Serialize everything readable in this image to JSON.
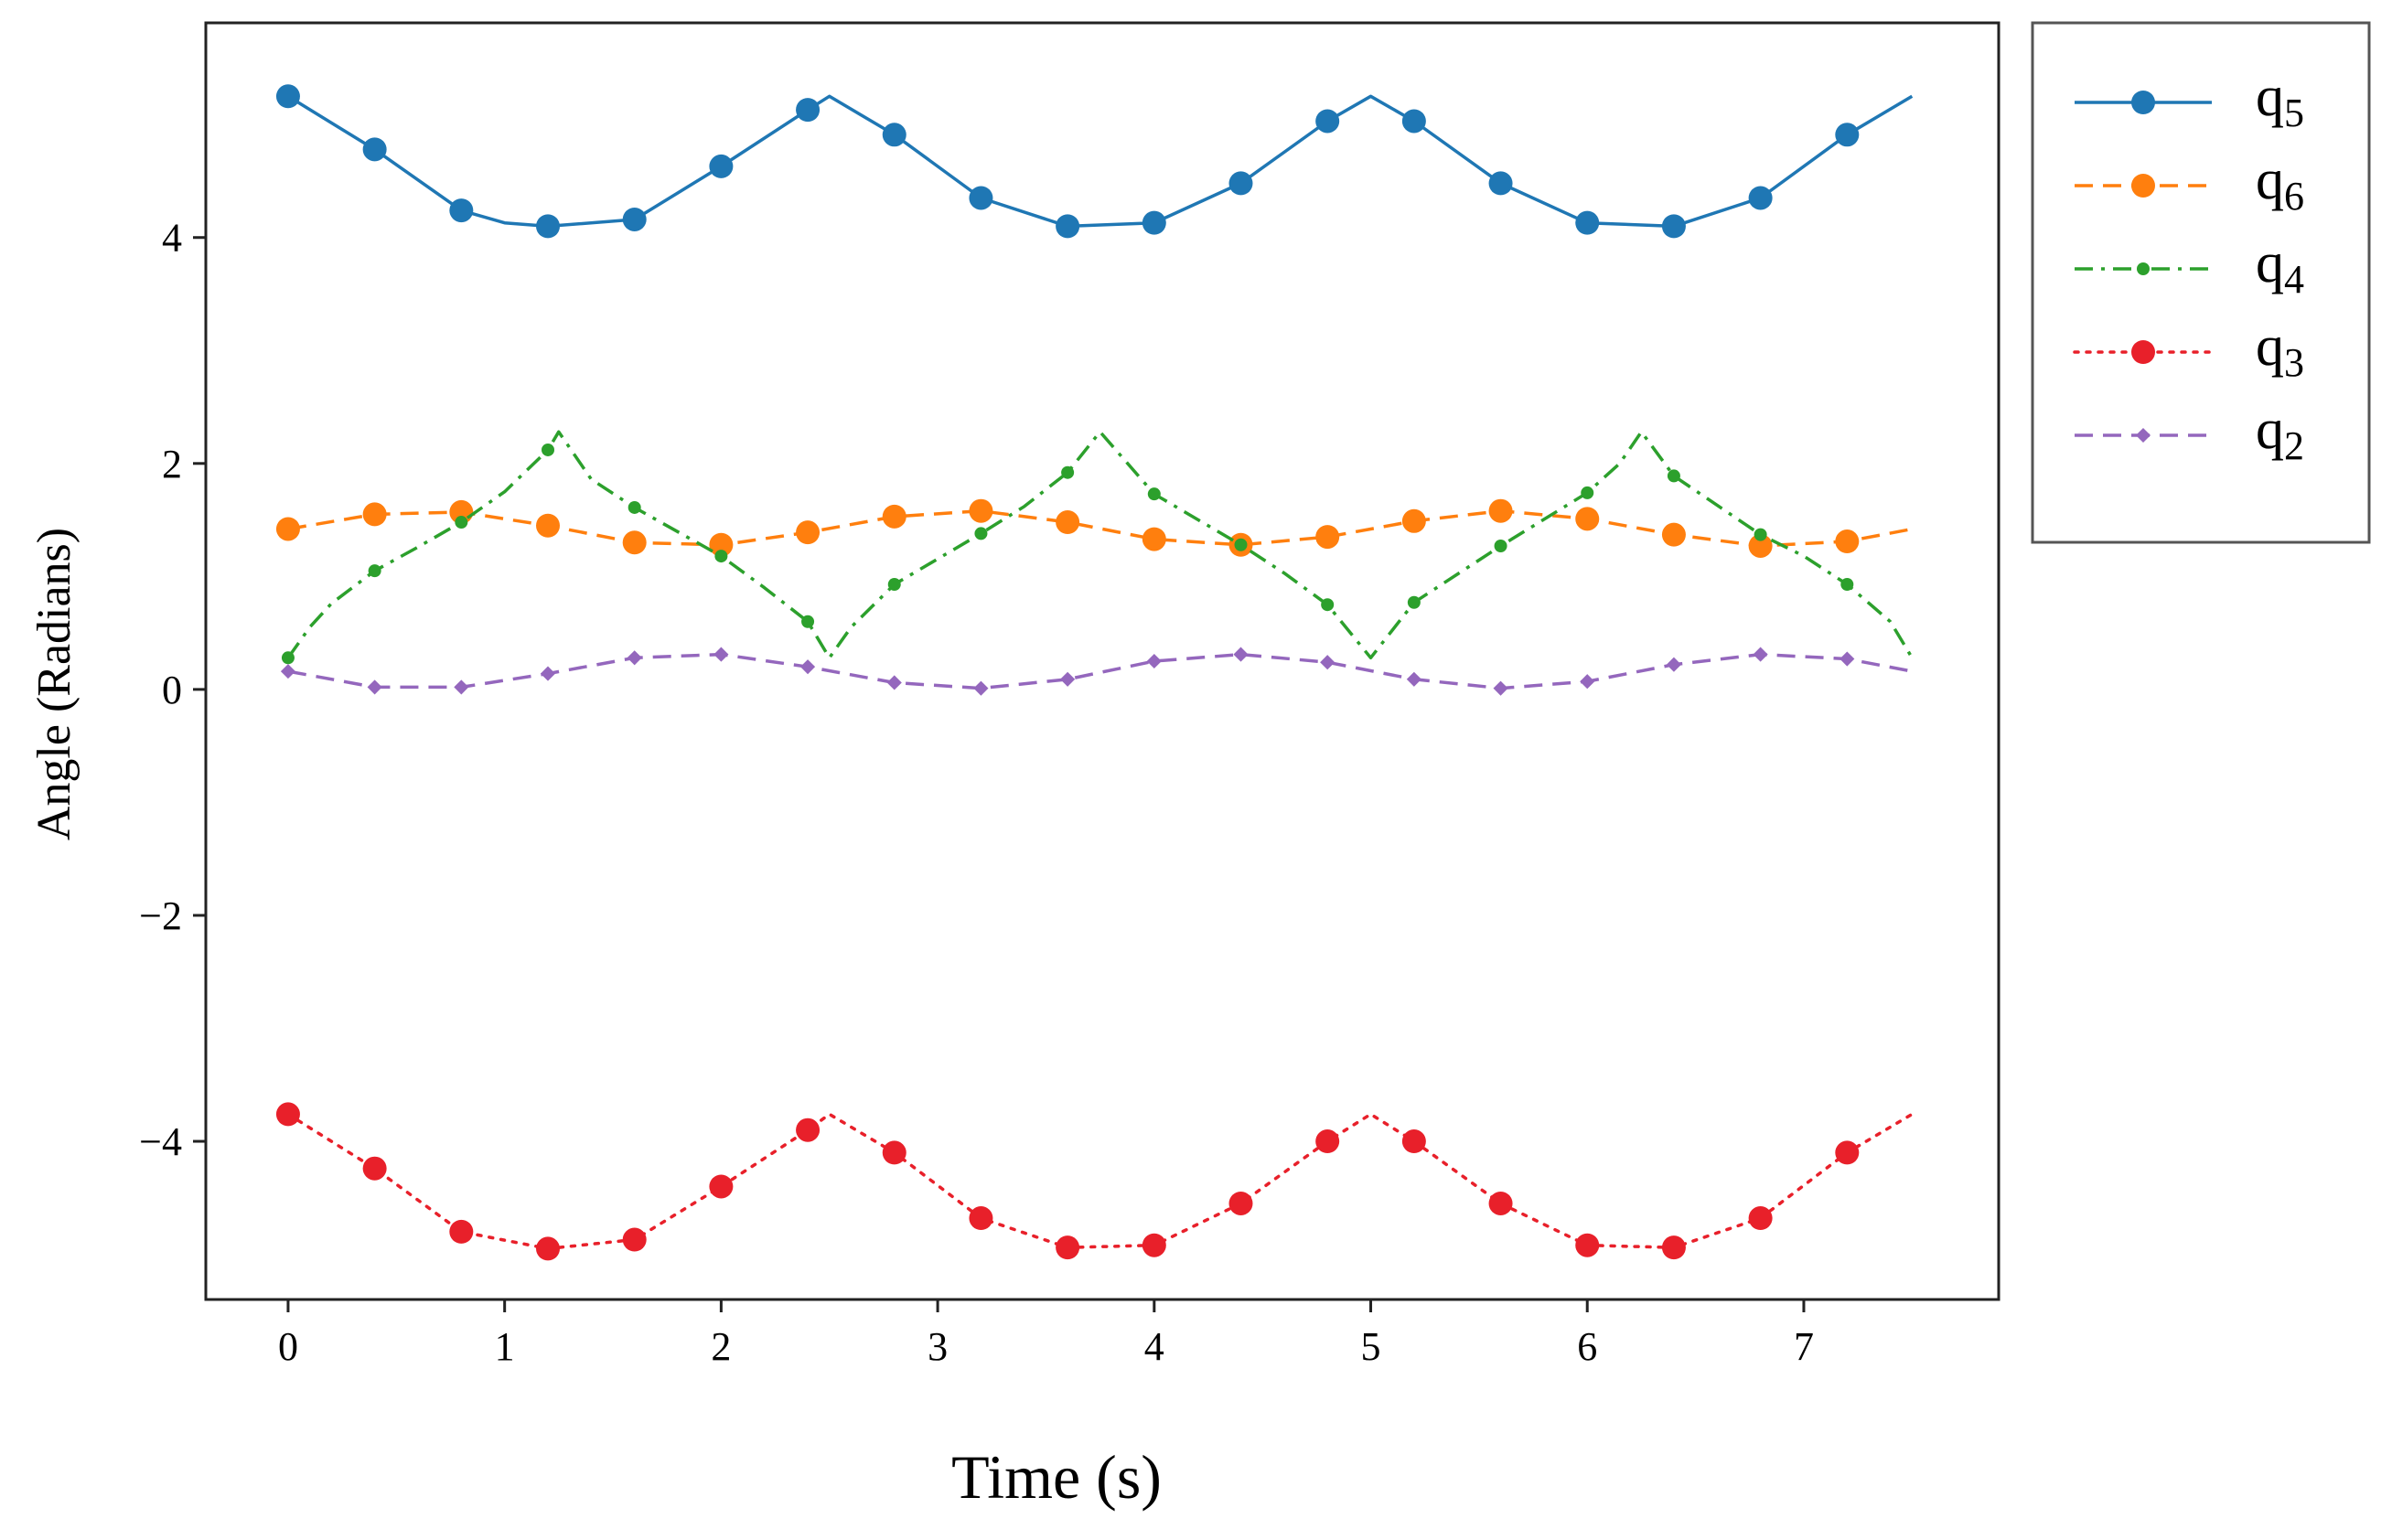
{
  "chart_data": {
    "type": "line",
    "title": "",
    "xlabel": "Time (s)",
    "ylabel": "Angle (Radians)",
    "xlim": [
      -0.38,
      7.9
    ],
    "ylim": [
      -5.4,
      5.9
    ],
    "xticks": [
      {
        "value": 0,
        "label": "0"
      },
      {
        "value": 1,
        "label": "1"
      },
      {
        "value": 2,
        "label": "2"
      },
      {
        "value": 3,
        "label": "3"
      },
      {
        "value": 4,
        "label": "4"
      },
      {
        "value": 5,
        "label": "5"
      },
      {
        "value": 6,
        "label": "6"
      },
      {
        "value": 7,
        "label": "7"
      }
    ],
    "yticks": [
      {
        "value": -4,
        "label": "−4"
      },
      {
        "value": -2,
        "label": "−2"
      },
      {
        "value": 0,
        "label": "0"
      },
      {
        "value": 2,
        "label": "2"
      },
      {
        "value": 4,
        "label": "4"
      }
    ],
    "grid": false,
    "legend_position": "outside-top-right",
    "x": [
      0,
      0.4,
      0.8,
      1.2,
      1.6,
      2.0,
      2.4,
      2.8,
      3.2,
      3.6,
      4.0,
      4.4,
      4.8,
      5.2,
      5.6,
      6.0,
      6.4,
      6.8,
      7.2
    ],
    "series": [
      {
        "name": "q5",
        "label_base": "q",
        "label_sub": "5",
        "color": "#1f77b4",
        "dash": "solid",
        "marker": "circle",
        "marker_size": "large",
        "line": [
          [
            0,
            5.25
          ],
          [
            0.4,
            4.78
          ],
          [
            0.8,
            4.24
          ],
          [
            1.0,
            4.13
          ],
          [
            1.2,
            4.1
          ],
          [
            1.6,
            4.16
          ],
          [
            2.0,
            4.63
          ],
          [
            2.4,
            5.13
          ],
          [
            2.5,
            5.25
          ],
          [
            2.8,
            4.91
          ],
          [
            3.2,
            4.35
          ],
          [
            3.6,
            4.1
          ],
          [
            4.0,
            4.13
          ],
          [
            4.4,
            4.48
          ],
          [
            4.8,
            5.03
          ],
          [
            5.0,
            5.25
          ],
          [
            5.2,
            5.03
          ],
          [
            5.6,
            4.48
          ],
          [
            6.0,
            4.13
          ],
          [
            6.4,
            4.1
          ],
          [
            6.8,
            4.35
          ],
          [
            7.2,
            4.91
          ],
          [
            7.5,
            5.25
          ]
        ],
        "values": [
          5.25,
          4.78,
          4.24,
          4.1,
          4.16,
          4.63,
          5.13,
          4.91,
          4.35,
          4.1,
          4.13,
          4.48,
          5.03,
          5.03,
          4.48,
          4.13,
          4.1,
          4.35,
          4.91
        ]
      },
      {
        "name": "q6",
        "label_base": "q",
        "label_sub": "6",
        "color": "#ff7f0e",
        "dash": "dashed",
        "marker": "circle",
        "marker_size": "large",
        "line": [
          [
            0,
            1.42
          ],
          [
            0.4,
            1.55
          ],
          [
            0.8,
            1.57
          ],
          [
            1.2,
            1.45
          ],
          [
            1.6,
            1.3
          ],
          [
            2.0,
            1.28
          ],
          [
            2.4,
            1.39
          ],
          [
            2.8,
            1.53
          ],
          [
            3.2,
            1.58
          ],
          [
            3.6,
            1.48
          ],
          [
            4.0,
            1.33
          ],
          [
            4.4,
            1.28
          ],
          [
            4.8,
            1.35
          ],
          [
            5.2,
            1.49
          ],
          [
            5.6,
            1.58
          ],
          [
            6.0,
            1.51
          ],
          [
            6.4,
            1.37
          ],
          [
            6.8,
            1.27
          ],
          [
            7.2,
            1.31
          ],
          [
            7.5,
            1.42
          ]
        ],
        "values": [
          1.42,
          1.55,
          1.57,
          1.45,
          1.3,
          1.28,
          1.39,
          1.53,
          1.58,
          1.48,
          1.33,
          1.28,
          1.35,
          1.49,
          1.58,
          1.51,
          1.37,
          1.27,
          1.31
        ]
      },
      {
        "name": "q4",
        "label_base": "q",
        "label_sub": "4",
        "color": "#2ca02c",
        "dash": "dashdot",
        "marker": "circle",
        "marker_size": "small",
        "line": [
          [
            0,
            0.28
          ],
          [
            0.1,
            0.55
          ],
          [
            0.2,
            0.76
          ],
          [
            0.4,
            1.05
          ],
          [
            0.6,
            1.26
          ],
          [
            0.8,
            1.48
          ],
          [
            1.0,
            1.75
          ],
          [
            1.2,
            2.12
          ],
          [
            1.25,
            2.28
          ],
          [
            1.4,
            1.86
          ],
          [
            1.6,
            1.61
          ],
          [
            2.0,
            1.18
          ],
          [
            2.2,
            0.9
          ],
          [
            2.4,
            0.6
          ],
          [
            2.5,
            0.28
          ],
          [
            2.6,
            0.55
          ],
          [
            2.8,
            0.93
          ],
          [
            3.2,
            1.38
          ],
          [
            3.4,
            1.62
          ],
          [
            3.6,
            1.92
          ],
          [
            3.75,
            2.28
          ],
          [
            4.0,
            1.73
          ],
          [
            4.4,
            1.28
          ],
          [
            4.6,
            1.03
          ],
          [
            4.8,
            0.75
          ],
          [
            5.0,
            0.28
          ],
          [
            5.2,
            0.77
          ],
          [
            5.6,
            1.27
          ],
          [
            6.0,
            1.74
          ],
          [
            6.15,
            2.0
          ],
          [
            6.25,
            2.28
          ],
          [
            6.4,
            1.89
          ],
          [
            6.8,
            1.37
          ],
          [
            7.0,
            1.18
          ],
          [
            7.2,
            0.93
          ],
          [
            7.4,
            0.6
          ],
          [
            7.5,
            0.28
          ]
        ],
        "values": [
          0.28,
          1.05,
          1.48,
          2.12,
          1.61,
          1.18,
          0.6,
          0.93,
          1.38,
          1.92,
          1.73,
          1.28,
          0.75,
          0.77,
          1.27,
          1.74,
          1.89,
          1.37,
          0.93
        ]
      },
      {
        "name": "q3",
        "label_base": "q",
        "label_sub": "3",
        "color": "#e8202a",
        "dash": "dotted",
        "marker": "circle",
        "marker_size": "large",
        "line": [
          [
            0,
            -3.76
          ],
          [
            0.4,
            -4.24
          ],
          [
            0.8,
            -4.8
          ],
          [
            1.2,
            -4.95
          ],
          [
            1.6,
            -4.87
          ],
          [
            2.0,
            -4.4
          ],
          [
            2.4,
            -3.9
          ],
          [
            2.5,
            -3.76
          ],
          [
            2.8,
            -4.1
          ],
          [
            3.2,
            -4.68
          ],
          [
            3.6,
            -4.94
          ],
          [
            4.0,
            -4.92
          ],
          [
            4.4,
            -4.55
          ],
          [
            4.8,
            -4.0
          ],
          [
            5.0,
            -3.76
          ],
          [
            5.2,
            -4.0
          ],
          [
            5.6,
            -4.55
          ],
          [
            6.0,
            -4.92
          ],
          [
            6.4,
            -4.94
          ],
          [
            6.8,
            -4.68
          ],
          [
            7.2,
            -4.1
          ],
          [
            7.5,
            -3.76
          ]
        ],
        "values": [
          -3.76,
          -4.24,
          -4.8,
          -4.95,
          -4.87,
          -4.4,
          -3.9,
          -4.1,
          -4.68,
          -4.94,
          -4.92,
          -4.55,
          -4.0,
          -4.0,
          -4.55,
          -4.92,
          -4.94,
          -4.68,
          -4.1
        ]
      },
      {
        "name": "q2",
        "label_base": "q",
        "label_sub": "2",
        "color": "#9467bd",
        "dash": "dashed",
        "marker": "diamond",
        "marker_size": "small",
        "line": [
          [
            0,
            0.16
          ],
          [
            0.4,
            0.02
          ],
          [
            0.8,
            0.02
          ],
          [
            1.2,
            0.14
          ],
          [
            1.6,
            0.28
          ],
          [
            2.0,
            0.31
          ],
          [
            2.4,
            0.2
          ],
          [
            2.8,
            0.06
          ],
          [
            3.2,
            0.01
          ],
          [
            3.6,
            0.09
          ],
          [
            4.0,
            0.25
          ],
          [
            4.4,
            0.31
          ],
          [
            4.8,
            0.24
          ],
          [
            5.2,
            0.09
          ],
          [
            5.6,
            0.01
          ],
          [
            6.0,
            0.07
          ],
          [
            6.4,
            0.22
          ],
          [
            6.8,
            0.31
          ],
          [
            7.2,
            0.27
          ],
          [
            7.5,
            0.16
          ]
        ],
        "values": [
          0.16,
          0.02,
          0.02,
          0.14,
          0.28,
          0.31,
          0.2,
          0.06,
          0.01,
          0.09,
          0.25,
          0.31,
          0.24,
          0.09,
          0.01,
          0.07,
          0.22,
          0.31,
          0.27
        ]
      }
    ]
  }
}
